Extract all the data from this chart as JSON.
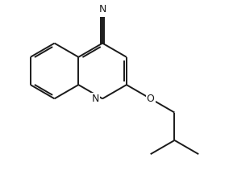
{
  "bg_color": "#ffffff",
  "line_color": "#1a1a1a",
  "line_width": 1.4,
  "figsize": [
    2.84,
    2.12
  ],
  "dpi": 100,
  "label_N": "N",
  "label_O": "O"
}
